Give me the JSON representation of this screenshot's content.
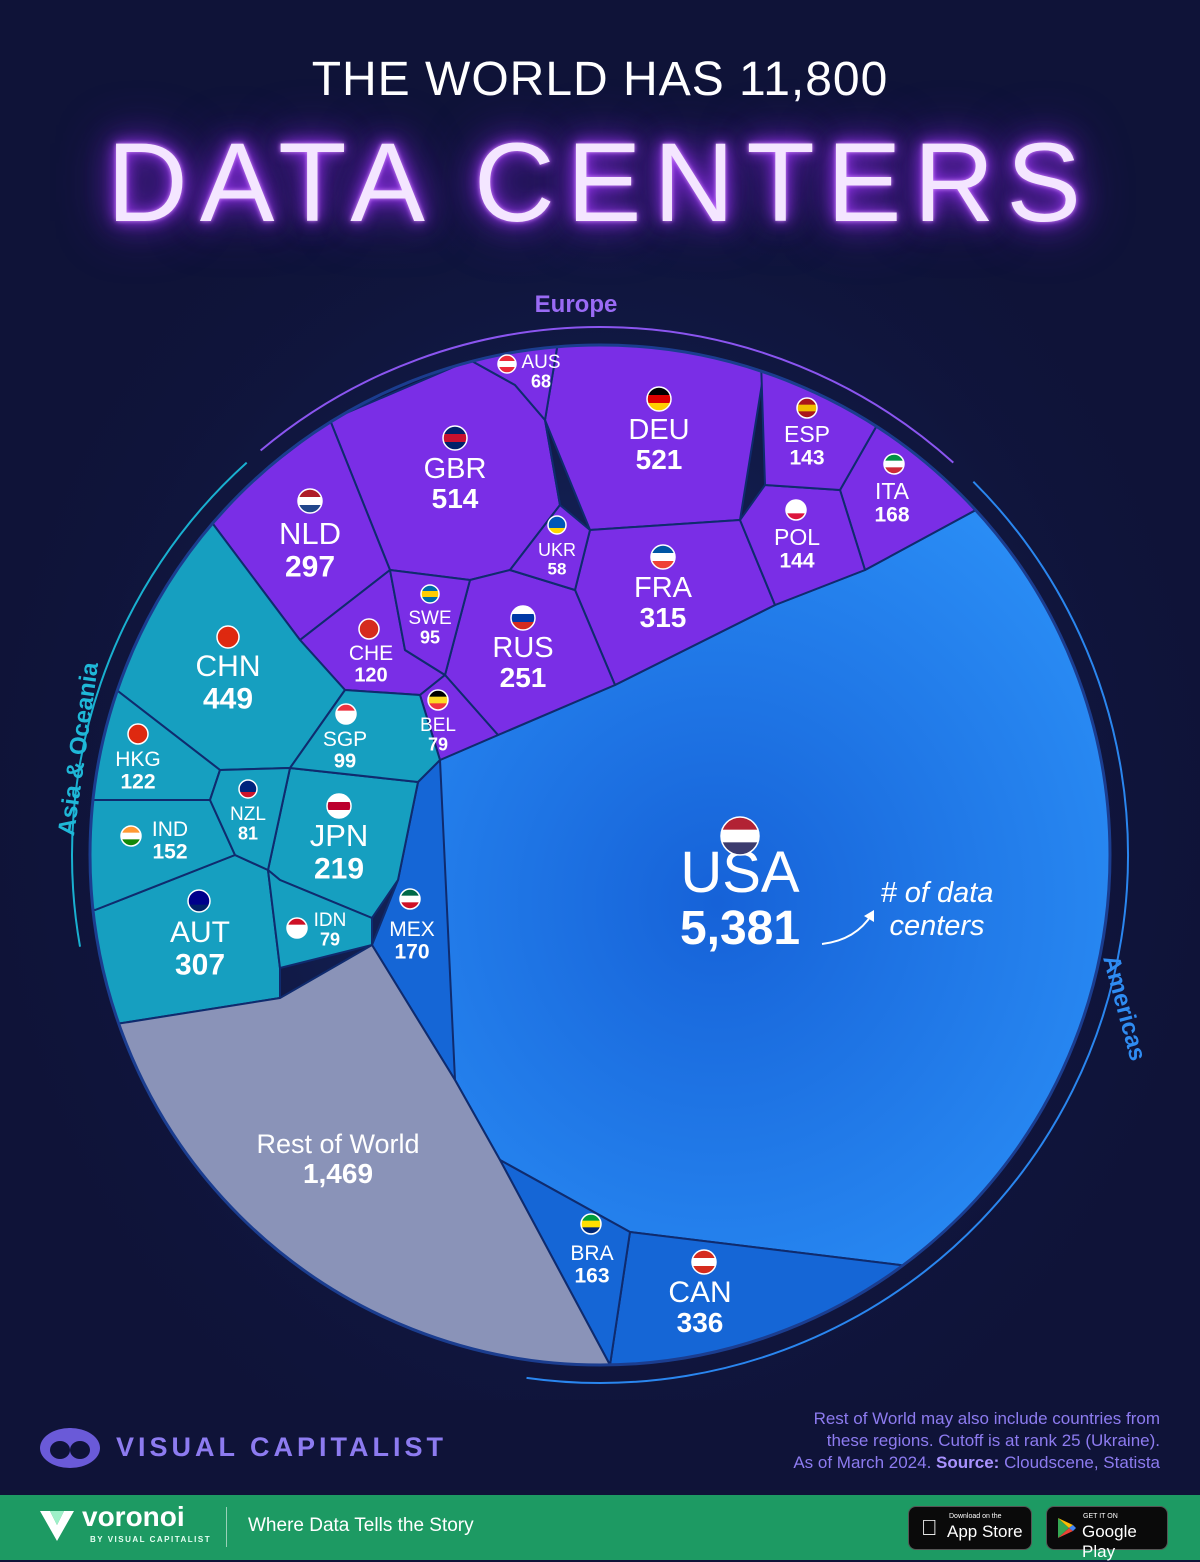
{
  "header": {
    "title_top": "THE WORLD HAS 11,800",
    "title_main": "DATA CENTERS"
  },
  "chart_data": {
    "type": "voronoi treemap",
    "title": "THE WORLD HAS 11,800 DATA CENTERS",
    "annotation": "# of data centers",
    "regions": [
      {
        "name": "Europe",
        "color": "#7a2ee6"
      },
      {
        "name": "Asia & Oceania",
        "color": "#169fc0"
      },
      {
        "name": "Americas",
        "color": "#1f7fe8"
      }
    ],
    "cells": [
      {
        "code": "USA",
        "value": "5,381",
        "region": "Americas"
      },
      {
        "code": "CAN",
        "value": "336",
        "region": "Americas"
      },
      {
        "code": "MEX",
        "value": "170",
        "region": "Americas"
      },
      {
        "code": "BRA",
        "value": "163",
        "region": "Americas"
      },
      {
        "code": "DEU",
        "value": "521",
        "region": "Europe"
      },
      {
        "code": "GBR",
        "value": "514",
        "region": "Europe"
      },
      {
        "code": "FRA",
        "value": "315",
        "region": "Europe"
      },
      {
        "code": "NLD",
        "value": "297",
        "region": "Europe"
      },
      {
        "code": "RUS",
        "value": "251",
        "region": "Europe"
      },
      {
        "code": "ITA",
        "value": "168",
        "region": "Europe"
      },
      {
        "code": "POL",
        "value": "144",
        "region": "Europe"
      },
      {
        "code": "ESP",
        "value": "143",
        "region": "Europe"
      },
      {
        "code": "CHE",
        "value": "120",
        "region": "Europe"
      },
      {
        "code": "SWE",
        "value": "95",
        "region": "Europe"
      },
      {
        "code": "BEL",
        "value": "79",
        "region": "Europe"
      },
      {
        "code": "AUS",
        "value": "68",
        "region": "Europe"
      },
      {
        "code": "UKR",
        "value": "58",
        "region": "Europe"
      },
      {
        "code": "CHN",
        "value": "449",
        "region": "Asia & Oceania"
      },
      {
        "code": "AUT",
        "value": "307",
        "region": "Asia & Oceania"
      },
      {
        "code": "JPN",
        "value": "219",
        "region": "Asia & Oceania"
      },
      {
        "code": "IND",
        "value": "152",
        "region": "Asia & Oceania"
      },
      {
        "code": "HKG",
        "value": "122",
        "region": "Asia & Oceania"
      },
      {
        "code": "SGP",
        "value": "99",
        "region": "Asia & Oceania"
      },
      {
        "code": "NZL",
        "value": "81",
        "region": "Asia & Oceania"
      },
      {
        "code": "IDN",
        "value": "79",
        "region": "Asia & Oceania"
      },
      {
        "code": "Rest of World",
        "value": "1,469",
        "region": "Other"
      }
    ]
  },
  "footnote": {
    "line1": "Rest of World may also include countries from",
    "line2": "these regions. Cutoff is at rank 25 (Ukraine).",
    "line3_prefix": "As of March 2024.",
    "source_label": "Source:",
    "source_text": "Cloudscene, Statista"
  },
  "branding": {
    "publisher": "VISUAL CAPITALIST",
    "footer_name": "voronoi",
    "footer_by": "BY VISUAL CAPITALIST",
    "tagline": "Where Data Tells the Story",
    "app_store_small": "Download on the",
    "app_store_big": "App Store",
    "google_small": "GET IT ON",
    "google_big": "Google Play"
  },
  "colors": {
    "background": "#0f1338",
    "europe": "#7a2ee6",
    "asia": "#169fc0",
    "americas": "#1f7fe8",
    "rest": "#8a93b8",
    "footer": "#1d9a63"
  }
}
